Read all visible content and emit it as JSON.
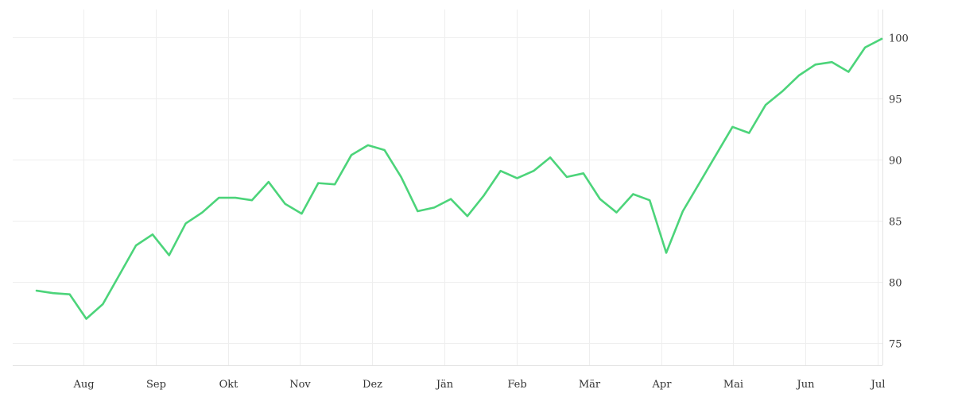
{
  "chart_data": {
    "type": "line",
    "grid": true,
    "legend": "none",
    "x_tick_labels": [
      "Aug",
      "Sep",
      "Okt",
      "Nov",
      "Dez",
      "Jän",
      "Feb",
      "Mär",
      "Apr",
      "Mai",
      "Jun",
      "Jul"
    ],
    "y_ticks": [
      75,
      80,
      85,
      90,
      95,
      100
    ],
    "ylim": [
      73.2,
      102.3
    ],
    "y_axis_position": "right",
    "series": [
      {
        "color": "#4cd47a",
        "values": [
          79.3,
          79.1,
          79.0,
          77.0,
          78.2,
          80.6,
          83.0,
          83.9,
          82.2,
          84.8,
          85.7,
          86.9,
          86.9,
          86.7,
          88.2,
          86.4,
          85.6,
          88.1,
          88.0,
          90.4,
          91.2,
          90.8,
          88.6,
          85.8,
          86.1,
          86.8,
          85.4,
          87.1,
          89.1,
          88.5,
          89.1,
          90.2,
          88.6,
          88.9,
          86.8,
          85.7,
          87.2,
          86.7,
          82.4,
          85.8,
          88.1,
          90.4,
          92.7,
          92.2,
          94.5,
          95.6,
          96.9,
          97.8,
          98.0,
          97.2,
          99.2,
          99.9
        ]
      }
    ]
  }
}
